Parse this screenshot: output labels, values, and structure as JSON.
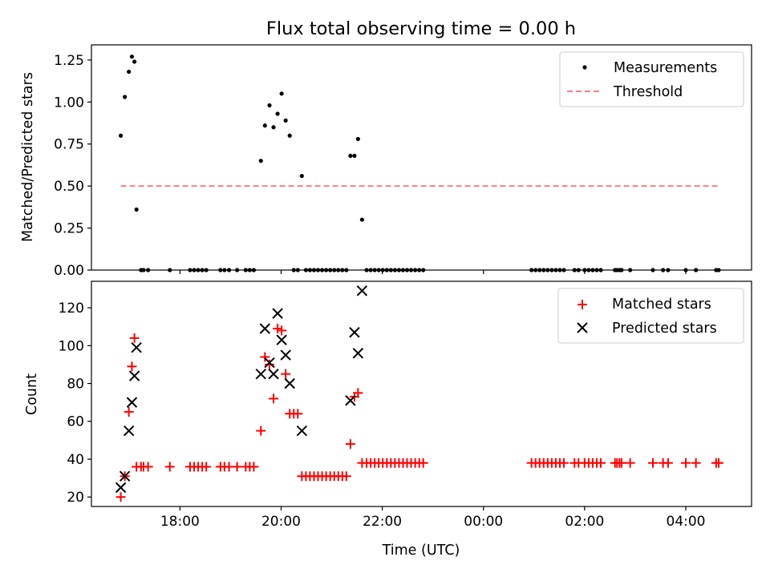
{
  "chart_data": [
    {
      "type": "scatter",
      "title": "Flux total observing time = 0.00 h",
      "xlabel": "",
      "ylabel": "Matched/Predicted stars",
      "xlim": [
        16.25,
        29.3
      ],
      "ylim": [
        0,
        1.34
      ],
      "yticks": [
        0.0,
        0.25,
        0.5,
        0.75,
        1.0,
        1.25
      ],
      "ytick_labels": [
        "0.00",
        "0.25",
        "0.50",
        "0.75",
        "1.00",
        "1.25"
      ],
      "legend": "top-right",
      "series": [
        {
          "name": "Measurements",
          "marker": "dot",
          "color": "#000000",
          "x": [
            16.83,
            16.91,
            16.99,
            17.05,
            17.1,
            17.14,
            17.23,
            17.28,
            17.37,
            17.8,
            18.2,
            18.28,
            18.36,
            18.44,
            18.52,
            18.8,
            18.88,
            18.97,
            19.13,
            19.3,
            19.38,
            19.46,
            19.6,
            19.68,
            19.77,
            19.85,
            19.93,
            20.01,
            20.09,
            20.17,
            20.25,
            20.33,
            20.41,
            20.49,
            20.57,
            20.65,
            20.73,
            20.81,
            20.89,
            20.97,
            21.05,
            21.13,
            21.21,
            21.29,
            21.37,
            21.45,
            21.52,
            21.6,
            21.69,
            21.77,
            21.85,
            21.93,
            22.01,
            22.09,
            22.17,
            22.25,
            22.33,
            22.41,
            22.49,
            22.57,
            22.65,
            22.73,
            22.81,
            24.95,
            25.03,
            25.11,
            25.19,
            25.27,
            25.35,
            25.43,
            25.51,
            25.59,
            25.8,
            25.88,
            26.0,
            26.08,
            26.16,
            26.24,
            26.32,
            26.6,
            26.64,
            26.69,
            26.73,
            26.9,
            27.35,
            27.55,
            27.65,
            28.0,
            28.2,
            28.6,
            28.65
          ],
          "y": [
            0.8,
            1.03,
            1.18,
            1.27,
            1.24,
            0.36,
            0,
            0,
            0,
            0,
            0,
            0,
            0,
            0,
            0,
            0,
            0,
            0,
            0,
            0,
            0,
            0,
            0.65,
            0.86,
            0.98,
            0.85,
            0.93,
            1.05,
            0.89,
            0.8,
            0,
            0,
            0.56,
            0,
            0,
            0,
            0,
            0,
            0,
            0,
            0,
            0,
            0,
            0,
            0.68,
            0.68,
            0.78,
            0.3,
            0,
            0,
            0,
            0,
            0,
            0,
            0,
            0,
            0,
            0,
            0,
            0,
            0,
            0,
            0,
            0,
            0,
            0,
            0,
            0,
            0,
            0,
            0,
            0,
            0,
            0,
            0,
            0,
            0,
            0,
            0,
            0,
            0,
            0,
            0,
            0,
            0,
            0,
            0,
            0,
            0,
            0,
            0
          ]
        },
        {
          "name": "Threshold",
          "style": "dashed",
          "color": "#ff7f7f",
          "x": [
            16.83,
            28.65
          ],
          "y": [
            0.5,
            0.5
          ]
        }
      ]
    },
    {
      "type": "scatter",
      "title": "",
      "xlabel": "Time (UTC)",
      "ylabel": "Count",
      "xlim": [
        16.25,
        29.3
      ],
      "ylim": [
        15,
        134
      ],
      "yticks": [
        20,
        40,
        60,
        80,
        100,
        120
      ],
      "ytick_labels": [
        "20",
        "40",
        "60",
        "80",
        "100",
        "120"
      ],
      "xticks": [
        18,
        20,
        22,
        24,
        26,
        28
      ],
      "xtick_labels": [
        "18:00",
        "20:00",
        "22:00",
        "00:00",
        "02:00",
        "04:00"
      ],
      "legend": "top-right",
      "series": [
        {
          "name": "Matched stars",
          "marker": "plus",
          "color": "#ff0000",
          "x": [
            16.83,
            16.91,
            16.99,
            17.05,
            17.1,
            17.14,
            17.23,
            17.28,
            17.37,
            17.8,
            18.2,
            18.28,
            18.36,
            18.44,
            18.52,
            18.8,
            18.88,
            18.97,
            19.13,
            19.3,
            19.38,
            19.46,
            19.6,
            19.68,
            19.77,
            19.85,
            19.93,
            20.01,
            20.09,
            20.17,
            20.25,
            20.33,
            20.41,
            20.49,
            20.57,
            20.65,
            20.73,
            20.81,
            20.89,
            20.97,
            21.05,
            21.13,
            21.21,
            21.29,
            21.37,
            21.45,
            21.52,
            21.6,
            21.69,
            21.77,
            21.85,
            21.93,
            22.01,
            22.09,
            22.17,
            22.25,
            22.33,
            22.41,
            22.49,
            22.57,
            22.65,
            22.73,
            22.81,
            24.95,
            25.03,
            25.11,
            25.19,
            25.27,
            25.35,
            25.43,
            25.51,
            25.59,
            25.8,
            25.88,
            26.0,
            26.08,
            26.16,
            26.24,
            26.32,
            26.6,
            26.64,
            26.69,
            26.73,
            26.9,
            27.35,
            27.55,
            27.65,
            28.0,
            28.2,
            28.6,
            28.65
          ],
          "y": [
            20,
            31,
            65,
            89,
            104,
            36,
            36,
            36,
            36,
            36,
            36,
            36,
            36,
            36,
            36,
            36,
            36,
            36,
            36,
            36,
            36,
            36,
            55,
            94,
            90,
            72,
            109,
            108,
            85,
            64,
            64,
            64,
            31,
            31,
            31,
            31,
            31,
            31,
            31,
            31,
            31,
            31,
            31,
            31,
            48,
            73,
            75,
            38,
            38,
            38,
            38,
            38,
            38,
            38,
            38,
            38,
            38,
            38,
            38,
            38,
            38,
            38,
            38,
            38,
            38,
            38,
            38,
            38,
            38,
            38,
            38,
            38,
            38,
            38,
            38,
            38,
            38,
            38,
            38,
            38,
            38,
            38,
            38,
            38,
            38,
            38,
            38,
            38,
            38,
            38,
            38
          ]
        },
        {
          "name": "Predicted stars",
          "marker": "x",
          "color": "#000000",
          "x": [
            16.83,
            16.91,
            16.99,
            17.05,
            17.1,
            17.14,
            19.6,
            19.68,
            19.77,
            19.85,
            19.93,
            20.01,
            20.09,
            20.17,
            20.41,
            21.37,
            21.45,
            21.52,
            21.6
          ],
          "y": [
            25,
            31,
            55,
            70,
            84,
            99,
            85,
            109,
            91,
            85,
            117,
            103,
            95,
            80,
            55,
            71,
            107,
            96,
            129
          ]
        }
      ]
    }
  ]
}
